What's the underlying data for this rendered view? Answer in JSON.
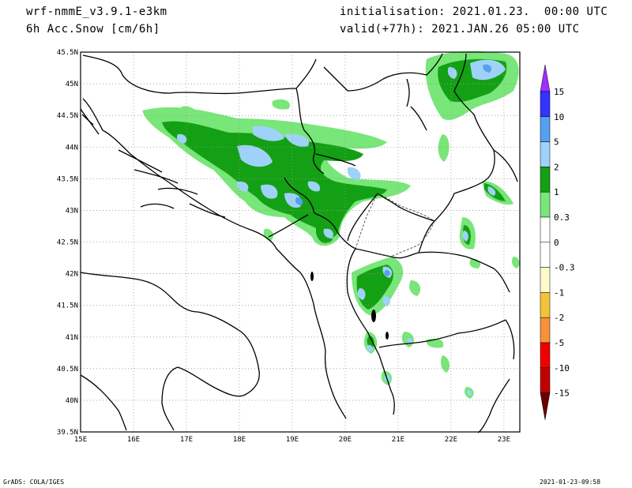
{
  "header": {
    "model": "wrf-nmmE_v3.9.1-e3km",
    "field": "6h Acc.Snow [cm/6h]",
    "init": "initialisation: 2021.01.23.  00:00 UTC",
    "valid": "valid(+77h): 2021.JAN.26 05:00 UTC"
  },
  "map": {
    "lon_ticks": [
      "15E",
      "16E",
      "17E",
      "18E",
      "19E",
      "20E",
      "21E",
      "22E",
      "23E"
    ],
    "lat_ticks": [
      "45.5N",
      "45N",
      "44.5N",
      "44N",
      "43.5N",
      "43N",
      "42.5N",
      "42N",
      "41.5N",
      "41N",
      "40.5N",
      "40N",
      "39.5N"
    ],
    "lon_range": [
      15,
      23.3
    ],
    "lat_range": [
      39.5,
      45.5
    ],
    "grid": true
  },
  "colorbar": {
    "levels": [
      {
        "label": "15",
        "color": "#3333ff"
      },
      {
        "label": "10",
        "color": "#55a0f0"
      },
      {
        "label": "5",
        "color": "#9fd2f8"
      },
      {
        "label": "2",
        "color": "#14a014"
      },
      {
        "label": "1",
        "color": "#78e678"
      },
      {
        "label": "0.3",
        "color": "#ffffff"
      },
      {
        "label": "0",
        "color": "#ffffff"
      },
      {
        "label": "-0.3",
        "color": "#fffacc"
      },
      {
        "label": "-1",
        "color": "#f3c43a"
      },
      {
        "label": "-2",
        "color": "#f7923b"
      },
      {
        "label": "-5",
        "color": "#ef0000"
      },
      {
        "label": "-10",
        "color": "#c00000"
      },
      {
        "label": "-15",
        "color": "#8b0000"
      }
    ],
    "top_arrow_color": "#9b30ff",
    "bottom_arrow_color": "#6a0000"
  },
  "footer": {
    "left": "GrADS: COLA/IGES",
    "right": "2021-01-23-09:58"
  }
}
